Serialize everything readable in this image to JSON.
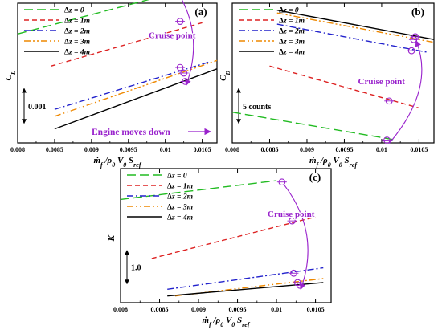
{
  "chart_data": [
    {
      "panel_label": "(a)",
      "type": "line",
      "ylabel": "C_L",
      "xlabel": "ṁ_f / ρ_0 V_0 S_ref",
      "xlim": [
        0.008,
        0.0107
      ],
      "xticks": [
        "0.008",
        "0.0085",
        "0.009",
        "0.0095",
        "0.01",
        "0.0105"
      ],
      "ylim": [
        0,
        1
      ],
      "scale_bar_label": "0.001",
      "scale_bar_fraction": 0.25,
      "annotations": [
        "Cruise point",
        "Engine moves down"
      ],
      "series": [
        {
          "name": "Δz = 0",
          "color": "#22bb22",
          "dash": "long",
          "x": [
            0.008,
            0.00995
          ],
          "y": [
            0.78,
            1.05
          ],
          "cruise": {
            "x": 0.0101,
            "y": 1.13
          }
        },
        {
          "name": "Δz = 1m",
          "color": "#dd2222",
          "dash": "medium",
          "x": [
            0.00845,
            0.0105
          ],
          "y": [
            0.55,
            0.86
          ],
          "cruise": {
            "x": 0.0102,
            "y": 0.87
          }
        },
        {
          "name": "Δz = 2m",
          "color": "#2222cc",
          "dash": "dashdot",
          "x": [
            0.0085,
            0.0106
          ],
          "y": [
            0.24,
            0.58
          ],
          "cruise": {
            "x": 0.0102,
            "y": 0.54
          }
        },
        {
          "name": "Δz = 3m",
          "color": "#ee8800",
          "dash": "dashdotdot",
          "x": [
            0.0085,
            0.0107
          ],
          "y": [
            0.19,
            0.59
          ],
          "cruise": {
            "x": 0.01025,
            "y": 0.5
          }
        },
        {
          "name": "Δz = 4m",
          "color": "#000000",
          "dash": "solid",
          "x": [
            0.0085,
            0.0107
          ],
          "y": [
            0.1,
            0.53
          ],
          "cruise": {
            "x": 0.01027,
            "y": 0.44
          }
        }
      ]
    },
    {
      "panel_label": "(b)",
      "type": "line",
      "ylabel": "C_D",
      "xlabel": "ṁ_f / ρ_0 V_0 S_ref",
      "xlim": [
        0.008,
        0.0107
      ],
      "xticks": [
        "0.008",
        "0.0085",
        "0.009",
        "0.0095",
        "0.01",
        "0.0105"
      ],
      "ylim": [
        0,
        1
      ],
      "scale_bar_label": "5 counts",
      "scale_bar_fraction": 0.25,
      "annotations": [
        "Cruise point"
      ],
      "series": [
        {
          "name": "Δz = 0",
          "color": "#22bb22",
          "dash": "long",
          "x": [
            0.008,
            0.0102
          ],
          "y": [
            0.22,
            0.02
          ],
          "cruise": {
            "x": 0.01007,
            "y": 0.02
          }
        },
        {
          "name": "Δz = 1m",
          "color": "#dd2222",
          "dash": "medium",
          "x": [
            0.0085,
            0.0105
          ],
          "y": [
            0.55,
            0.25
          ],
          "cruise": {
            "x": 0.0101,
            "y": 0.3
          }
        },
        {
          "name": "Δz = 2m",
          "color": "#2222cc",
          "dash": "dashdot",
          "x": [
            0.0086,
            0.0106
          ],
          "y": [
            0.85,
            0.65
          ],
          "cruise": {
            "x": 0.0104,
            "y": 0.66
          }
        },
        {
          "name": "Δz = 3m",
          "color": "#ee8800",
          "dash": "dashdotdot",
          "x": [
            0.0086,
            0.0107
          ],
          "y": [
            0.93,
            0.72
          ],
          "cruise": {
            "x": 0.01043,
            "y": 0.74
          }
        },
        {
          "name": "Δz = 4m",
          "color": "#000000",
          "dash": "solid",
          "x": [
            0.0086,
            0.0107
          ],
          "y": [
            0.95,
            0.74
          ],
          "cruise": {
            "x": 0.01045,
            "y": 0.76
          }
        }
      ]
    },
    {
      "panel_label": "(c)",
      "type": "line",
      "ylabel": "K",
      "xlabel": "ṁ_f / ρ_0 V_0 S_ref",
      "xlim": [
        0.008,
        0.0107
      ],
      "xticks": [
        "0.008",
        "0.0085",
        "0.009",
        "0.0095",
        "0.01",
        "0.0105"
      ],
      "ylim": [
        0,
        1
      ],
      "scale_bar_label": "1.0",
      "scale_bar_fraction": 0.25,
      "annotations": [
        "Cruise point"
      ],
      "series": [
        {
          "name": "Δz = 0",
          "color": "#22bb22",
          "dash": "long",
          "x": [
            0.008,
            0.01
          ],
          "y": [
            0.77,
            0.91
          ],
          "cruise": {
            "x": 0.01007,
            "y": 0.9
          }
        },
        {
          "name": "Δz = 1m",
          "color": "#dd2222",
          "dash": "medium",
          "x": [
            0.0084,
            0.0105
          ],
          "y": [
            0.33,
            0.64
          ],
          "cruise": {
            "x": 0.0102,
            "y": 0.61
          }
        },
        {
          "name": "Δz = 2m",
          "color": "#2222cc",
          "dash": "dashdot",
          "x": [
            0.0086,
            0.0106
          ],
          "y": [
            0.1,
            0.26
          ],
          "cruise": {
            "x": 0.01022,
            "y": 0.22
          }
        },
        {
          "name": "Δz = 3m",
          "color": "#ee8800",
          "dash": "dashdotdot",
          "x": [
            0.0087,
            0.0106
          ],
          "y": [
            0.05,
            0.18
          ],
          "cruise": {
            "x": 0.01027,
            "y": 0.15
          }
        },
        {
          "name": "Δz = 4m",
          "color": "#000000",
          "dash": "solid",
          "x": [
            0.0086,
            0.0106
          ],
          "y": [
            0.05,
            0.15
          ],
          "cruise": {
            "x": 0.0103,
            "y": 0.13
          }
        }
      ]
    }
  ]
}
